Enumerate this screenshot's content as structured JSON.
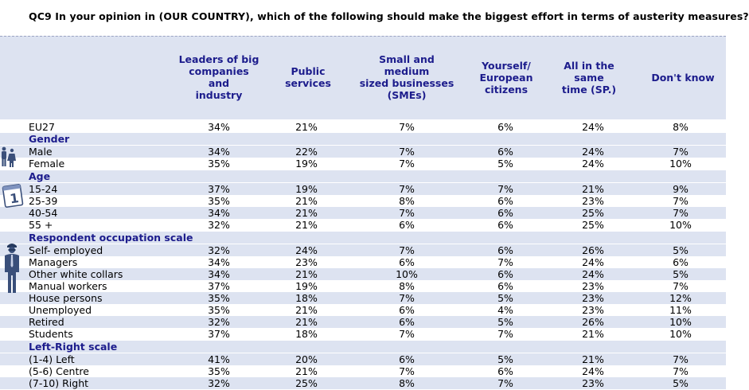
{
  "title": "QC9 In your opinion in (OUR COUNTRY), which of the following should make the biggest effort in terms of austerity measures?",
  "headers": [
    [
      "Leaders of big",
      "companies and",
      "industry"
    ],
    [
      "Public services"
    ],
    [
      "Small and medium",
      "sized businesses",
      "(SMEs)"
    ],
    [
      "Yourself/",
      "European",
      "citizens"
    ],
    [
      "All in the same",
      "time (SP.)"
    ],
    [
      "Don't know"
    ]
  ],
  "rows": [
    {
      "label": "EU27",
      "values": [
        "34%",
        "21%",
        "7%",
        "6%",
        "24%",
        "8%"
      ]
    },
    {
      "label": "Gender",
      "section": true
    },
    {
      "label": "Male",
      "values": [
        "34%",
        "22%",
        "7%",
        "6%",
        "24%",
        "7%"
      ]
    },
    {
      "label": "Female",
      "values": [
        "35%",
        "19%",
        "7%",
        "5%",
        "24%",
        "10%"
      ]
    },
    {
      "label": "Age",
      "section": true
    },
    {
      "label": "15-24",
      "values": [
        "37%",
        "19%",
        "7%",
        "7%",
        "21%",
        "9%"
      ]
    },
    {
      "label": "25-39",
      "values": [
        "35%",
        "21%",
        "8%",
        "6%",
        "23%",
        "7%"
      ]
    },
    {
      "label": "40-54",
      "values": [
        "34%",
        "21%",
        "7%",
        "6%",
        "25%",
        "7%"
      ]
    },
    {
      "label": "55 +",
      "values": [
        "32%",
        "21%",
        "6%",
        "6%",
        "25%",
        "10%"
      ]
    },
    {
      "label": "Respondent occupation scale",
      "section": true
    },
    {
      "label": "Self- employed",
      "values": [
        "32%",
        "24%",
        "7%",
        "6%",
        "26%",
        "5%"
      ]
    },
    {
      "label": "Managers",
      "values": [
        "34%",
        "23%",
        "6%",
        "7%",
        "24%",
        "6%"
      ]
    },
    {
      "label": "Other white collars",
      "values": [
        "34%",
        "21%",
        "10%",
        "6%",
        "24%",
        "5%"
      ]
    },
    {
      "label": "Manual workers",
      "values": [
        "37%",
        "19%",
        "8%",
        "6%",
        "23%",
        "7%"
      ]
    },
    {
      "label": "House persons",
      "values": [
        "35%",
        "18%",
        "7%",
        "5%",
        "23%",
        "12%"
      ]
    },
    {
      "label": "Unemployed",
      "values": [
        "35%",
        "21%",
        "6%",
        "4%",
        "23%",
        "11%"
      ]
    },
    {
      "label": "Retired",
      "values": [
        "32%",
        "21%",
        "6%",
        "5%",
        "26%",
        "10%"
      ]
    },
    {
      "label": "Students",
      "values": [
        "37%",
        "18%",
        "7%",
        "7%",
        "21%",
        "10%"
      ]
    },
    {
      "label": "Left-Right scale",
      "section": true
    },
    {
      "label": "(1-4) Left",
      "values": [
        "41%",
        "20%",
        "6%",
        "5%",
        "21%",
        "7%"
      ]
    },
    {
      "label": "(5-6) Centre",
      "values": [
        "35%",
        "21%",
        "7%",
        "6%",
        "24%",
        "7%"
      ]
    },
    {
      "label": "(7-10) Right",
      "values": [
        "32%",
        "25%",
        "8%",
        "7%",
        "23%",
        "5%"
      ]
    }
  ],
  "icons": {
    "gender": "gender-icon",
    "age": "calendar-icon",
    "occupation": "businessman-icon",
    "calendar_digit": "1"
  },
  "colors": {
    "band": "#dde3f1",
    "heading": "#1c1c8c"
  }
}
